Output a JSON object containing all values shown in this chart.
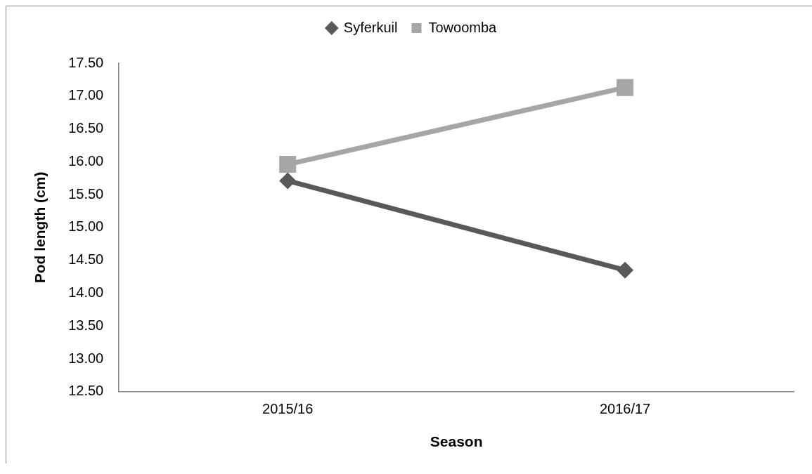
{
  "chart_data": {
    "type": "line",
    "xlabel": "Season",
    "ylabel": "Pod length (cm)",
    "categories": [
      "2015/16",
      "2016/17"
    ],
    "series": [
      {
        "name": "Syferkuil",
        "color": "#595959",
        "marker": "diamond",
        "values": [
          15.71,
          14.35
        ]
      },
      {
        "name": "Towoomba",
        "color": "#a6a6a6",
        "marker": "square",
        "values": [
          15.96,
          17.13
        ]
      }
    ],
    "ylim": [
      12.5,
      17.5
    ],
    "yticks": [
      {
        "value": 12.5,
        "label": "12.50"
      },
      {
        "value": 13,
        "label": "13.00"
      },
      {
        "value": 13.5,
        "label": "13.50"
      },
      {
        "value": 14,
        "label": "14.00"
      },
      {
        "value": 14.5,
        "label": "14.50"
      },
      {
        "value": 15,
        "label": "15.00"
      },
      {
        "value": 15.5,
        "label": "15.50"
      },
      {
        "value": 16,
        "label": "16.00"
      },
      {
        "value": 16.5,
        "label": "16.50"
      },
      {
        "value": 17,
        "label": "17.00"
      },
      {
        "value": 17.5,
        "label": "17.50"
      }
    ],
    "grid": false,
    "legend": "top",
    "line_style": "solid"
  }
}
